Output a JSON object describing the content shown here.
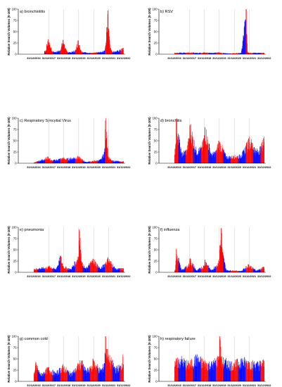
{
  "figure": {
    "y_axis_label": "Relative Search Volumes (0-100)",
    "x_tick_labels": [
      "31/12/2016",
      "31/12/2017",
      "31/12/2018",
      "31/12/2019",
      "31/12/2020",
      "31/12/2021",
      "31/12/2022"
    ],
    "y_ticks": [
      0,
      25,
      50,
      75,
      100
    ],
    "colors": {
      "series_red": "#ff0000",
      "series_blue": "#0000ff",
      "gridline": "#c8c8c8",
      "axis": "#000000"
    }
  },
  "chart_data": [
    {
      "type": "bar",
      "title": "a) bronchiolitis",
      "ylabel": "Relative Search Volumes (0-100)",
      "ylim": [
        0,
        100
      ],
      "x": [
        "2017-10",
        "2017-11",
        "2017-12",
        "2018-01",
        "2018-02",
        "2018-03",
        "2018-06",
        "2018-10",
        "2018-11",
        "2018-12",
        "2019-01",
        "2019-02",
        "2019-03",
        "2019-06",
        "2019-10",
        "2019-11",
        "2019-12",
        "2020-01",
        "2020-02",
        "2020-03",
        "2020-06",
        "2020-10",
        "2020-12",
        "2021-03",
        "2021-06",
        "2021-09",
        "2021-10",
        "2021-11",
        "2021-12",
        "2022-01",
        "2022-02",
        "2022-03",
        "2022-06",
        "2022-10",
        "2022-12"
      ],
      "series": [
        {
          "values": [
            8,
            22,
            33,
            25,
            14,
            7,
            5,
            10,
            24,
            31,
            22,
            12,
            6,
            4,
            9,
            22,
            30,
            20,
            10,
            6,
            4,
            3,
            3,
            4,
            5,
            8,
            18,
            60,
            97,
            40,
            14,
            7,
            6,
            10,
            14
          ]
        }
      ]
    },
    {
      "type": "bar",
      "title": "b) RSV",
      "ylabel": "Relative Search Volumes (0-100)",
      "ylim": [
        0,
        100
      ],
      "x": [
        "2017-01",
        "2017-12",
        "2018-06",
        "2018-12",
        "2019-06",
        "2019-12",
        "2020-06",
        "2020-12",
        "2021-06",
        "2021-10",
        "2021-11",
        "2021-12",
        "2022-06",
        "2022-12"
      ],
      "series": [
        {
          "values": [
            3,
            4,
            3,
            4,
            3,
            4,
            2,
            2,
            3,
            100,
            5,
            4,
            3,
            3
          ]
        }
      ]
    },
    {
      "type": "bar",
      "title": "c) Respiratory Syncytial Virus",
      "ylabel": "Relative Search Volumes (0-100)",
      "ylim": [
        0,
        100
      ],
      "x": [
        "2017-01",
        "2017-12",
        "2018-03",
        "2018-12",
        "2019-03",
        "2019-12",
        "2020-06",
        "2020-12",
        "2021-06",
        "2021-09",
        "2021-10",
        "2021-11",
        "2021-12",
        "2022-03",
        "2022-12"
      ],
      "series": [
        {
          "values": [
            2,
            14,
            6,
            12,
            10,
            15,
            3,
            5,
            8,
            25,
            95,
            70,
            15,
            6,
            4
          ]
        }
      ]
    },
    {
      "type": "bar",
      "title": "d) bronchitis",
      "ylabel": "Relative Search Volumes (0-100)",
      "ylim": [
        0,
        100
      ],
      "x": [
        "2017-01",
        "2017-02",
        "2017-06",
        "2017-10",
        "2017-12",
        "2018-01",
        "2018-06",
        "2018-10",
        "2018-12",
        "2019-01",
        "2019-06",
        "2019-10",
        "2019-12",
        "2020-03",
        "2020-06",
        "2020-12",
        "2021-06",
        "2021-10",
        "2021-12",
        "2022-03",
        "2022-06",
        "2022-10",
        "2022-12"
      ],
      "series": [
        {
          "values": [
            32,
            98,
            22,
            30,
            55,
            85,
            28,
            35,
            55,
            80,
            20,
            28,
            50,
            35,
            15,
            16,
            18,
            40,
            55,
            45,
            28,
            38,
            55
          ]
        }
      ]
    },
    {
      "type": "bar",
      "title": "e) pneumonia",
      "ylabel": "Relative Search Volumes (0-100)",
      "ylim": [
        0,
        100
      ],
      "x": [
        "2017-01",
        "2017-12",
        "2018-01",
        "2018-06",
        "2018-10",
        "2018-12",
        "2019-06",
        "2019-12",
        "2020-01",
        "2020-02",
        "2020-03",
        "2020-06",
        "2020-12",
        "2021-06",
        "2021-12",
        "2022-06",
        "2022-12"
      ],
      "series": [
        {
          "values": [
            8,
            12,
            14,
            7,
            36,
            14,
            7,
            35,
            95,
            50,
            22,
            8,
            30,
            8,
            32,
            8,
            9
          ]
        }
      ]
    },
    {
      "type": "bar",
      "title": "f) influenza",
      "ylabel": "Relative Search Volumes (0-100)",
      "ylim": [
        0,
        100
      ],
      "x": [
        "2017-01",
        "2017-02",
        "2017-06",
        "2017-12",
        "2018-01",
        "2018-06",
        "2018-12",
        "2019-01",
        "2019-06",
        "2019-12",
        "2020-01",
        "2020-02",
        "2020-03",
        "2020-06",
        "2020-12",
        "2021-06",
        "2021-12",
        "2022-06",
        "2022-12"
      ],
      "series": [
        {
          "values": [
            5,
            52,
            5,
            18,
            30,
            4,
            15,
            28,
            4,
            25,
            60,
            98,
            45,
            5,
            4,
            3,
            18,
            4,
            12
          ]
        }
      ]
    },
    {
      "type": "bar",
      "title": "g) common cold",
      "ylabel": "Relative Search Volumes (0-100)",
      "ylim": [
        0,
        100
      ],
      "x": [
        "2017-01",
        "2017-02",
        "2017-06",
        "2017-10",
        "2017-12",
        "2018-06",
        "2018-10",
        "2018-12",
        "2019-06",
        "2019-10",
        "2019-12",
        "2020-03",
        "2020-06",
        "2020-10",
        "2020-12",
        "2021-06",
        "2021-09",
        "2021-10",
        "2021-12",
        "2022-03",
        "2022-06",
        "2022-10",
        "2022-12"
      ],
      "series": [
        {
          "values": [
            20,
            40,
            15,
            25,
            30,
            18,
            30,
            35,
            18,
            28,
            38,
            45,
            25,
            30,
            48,
            25,
            40,
            100,
            55,
            45,
            30,
            35,
            55
          ]
        }
      ]
    },
    {
      "type": "bar",
      "title": "h) respiratory failure",
      "ylabel": "Relative Search Volumes (0-100)",
      "ylim": [
        0,
        100
      ],
      "x": [
        "2017-01",
        "2017-06",
        "2017-12",
        "2018-06",
        "2018-12",
        "2019-06",
        "2019-12",
        "2020-01",
        "2020-02",
        "2020-06",
        "2020-12",
        "2021-06",
        "2021-12",
        "2022-06",
        "2022-12"
      ],
      "series": [
        {
          "values": [
            45,
            50,
            40,
            55,
            45,
            40,
            55,
            100,
            50,
            45,
            40,
            50,
            45,
            40,
            45
          ]
        }
      ]
    }
  ]
}
